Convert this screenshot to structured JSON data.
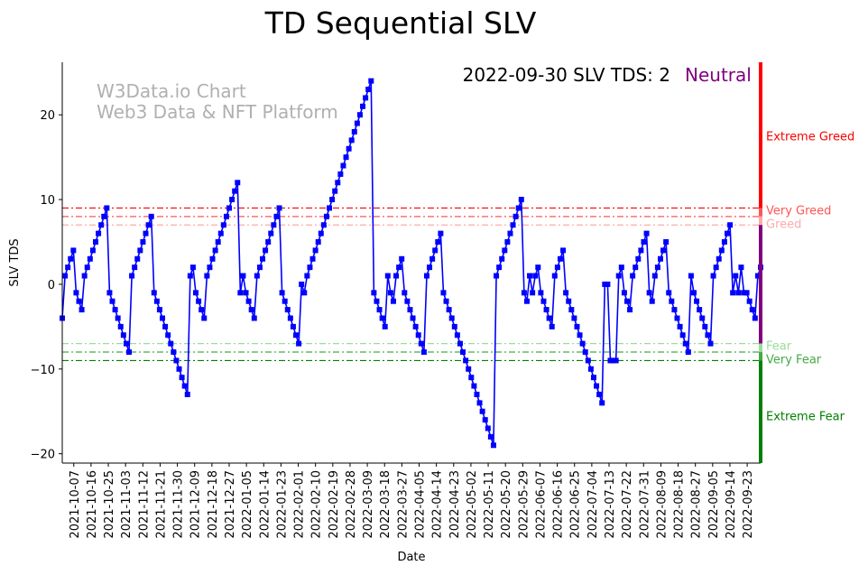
{
  "chart_data": {
    "type": "line",
    "title": "TD Sequential SLV",
    "xlabel": "Date",
    "ylabel": "SLV TDS",
    "ylim": [
      -21.1,
      26.2
    ],
    "x_start": "2021-10-01",
    "x_end": "2022-09-30",
    "y_ticks": [
      20,
      10,
      0,
      -10,
      -20
    ],
    "x_ticks": [
      "2021-10-07",
      "2021-10-16",
      "2021-10-25",
      "2021-11-03",
      "2021-11-12",
      "2021-11-21",
      "2021-11-30",
      "2021-12-09",
      "2021-12-18",
      "2021-12-27",
      "2022-01-05",
      "2022-01-14",
      "2022-01-23",
      "2022-02-01",
      "2022-02-10",
      "2022-02-19",
      "2022-02-28",
      "2022-03-09",
      "2022-03-18",
      "2022-03-27",
      "2022-04-05",
      "2022-04-14",
      "2022-04-23",
      "2022-05-02",
      "2022-05-11",
      "2022-05-20",
      "2022-05-29",
      "2022-06-07",
      "2022-06-16",
      "2022-06-25",
      "2022-07-04",
      "2022-07-13",
      "2022-07-22",
      "2022-07-31",
      "2022-08-09",
      "2022-08-18",
      "2022-08-27",
      "2022-09-05",
      "2022-09-14",
      "2022-09-23"
    ],
    "series": [
      {
        "name": "SLV TDS",
        "color": "#0000ff",
        "values": [
          -4,
          1,
          2,
          3,
          4,
          -1,
          -2,
          -3,
          1,
          2,
          3,
          4,
          5,
          6,
          7,
          8,
          9,
          -1,
          -2,
          -3,
          -4,
          -5,
          -6,
          -7,
          -8,
          1,
          2,
          3,
          4,
          5,
          6,
          7,
          8,
          -1,
          -2,
          -3,
          -4,
          -5,
          -6,
          -7,
          -8,
          -9,
          -10,
          -11,
          -12,
          -13,
          1,
          2,
          -1,
          -2,
          -3,
          -4,
          1,
          2,
          3,
          4,
          5,
          6,
          7,
          8,
          9,
          10,
          11,
          12,
          -1,
          1,
          -1,
          -2,
          -3,
          -4,
          1,
          2,
          3,
          4,
          5,
          6,
          7,
          8,
          9,
          -1,
          -2,
          -3,
          -4,
          -5,
          -6,
          -7,
          0,
          -1,
          1,
          2,
          3,
          4,
          5,
          6,
          7,
          8,
          9,
          10,
          11,
          12,
          13,
          14,
          15,
          16,
          17,
          18,
          19,
          20,
          21,
          22,
          23,
          24,
          -1,
          -2,
          -3,
          -4,
          -5,
          1,
          -1,
          -2,
          1,
          2,
          3,
          -1,
          -2,
          -3,
          -4,
          -5,
          -6,
          -7,
          -8,
          1,
          2,
          3,
          4,
          5,
          6,
          -1,
          -2,
          -3,
          -4,
          -5,
          -6,
          -7,
          -8,
          -9,
          -10,
          -11,
          -12,
          -13,
          -14,
          -15,
          -16,
          -17,
          -18,
          -19,
          1,
          2,
          3,
          4,
          5,
          6,
          7,
          8,
          9,
          10,
          -1,
          -2,
          1,
          -1,
          1,
          2,
          -1,
          -2,
          -3,
          -4,
          -5,
          1,
          2,
          3,
          4,
          -1,
          -2,
          -3,
          -4,
          -5,
          -6,
          -7,
          -8,
          -9,
          -10,
          -11,
          -12,
          -13,
          -14,
          0,
          0,
          -9,
          -9,
          -9,
          1,
          2,
          -1,
          -2,
          -3,
          1,
          2,
          3,
          4,
          5,
          6,
          -1,
          -2,
          1,
          2,
          3,
          4,
          5,
          -1,
          -2,
          -3,
          -4,
          -5,
          -6,
          -7,
          -8,
          1,
          -1,
          -2,
          -3,
          -4,
          -5,
          -6,
          -7,
          1,
          2,
          3,
          4,
          5,
          6,
          7,
          -1,
          1,
          -1,
          2,
          -1,
          -1,
          -2,
          -3,
          -4,
          1,
          2
        ]
      }
    ],
    "thresholds": [
      {
        "label": "Extreme Greed",
        "value": 9,
        "color": "#ff0000",
        "label_value": 17.5
      },
      {
        "label": "Very Greed",
        "value": 8,
        "color": "#ff5555",
        "label_value": 8.5
      },
      {
        "label": "Greed",
        "value": 7,
        "color": "#ffaaaa",
        "label_value": 7.5
      },
      {
        "label": "Fear",
        "value": -7,
        "color": "#99dd99",
        "label_value": -7.5
      },
      {
        "label": "Very Fear",
        "value": -8,
        "color": "#44aa44",
        "label_value": -8.5
      },
      {
        "label": "Extreme Fear",
        "value": -9,
        "color": "#008000",
        "label_value": -15.5
      }
    ],
    "neutral_color": "#800080",
    "annotation": {
      "text": "2022-09-30 SLV TDS: 2",
      "status": "Neutral",
      "status_color": "#800080"
    },
    "watermark": [
      "W3Data.io Chart",
      "Web3 Data & NFT Platform"
    ],
    "grid": false,
    "legend": "none"
  }
}
